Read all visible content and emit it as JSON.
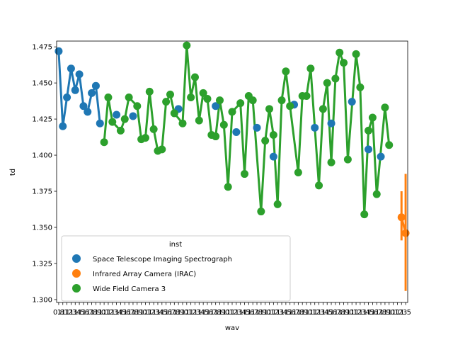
{
  "chart_data": {
    "type": "line",
    "xlabel": "wav",
    "ylabel": "td",
    "ylim": [
      1.298,
      1.479
    ],
    "yticks": [
      "1.300",
      "1.325",
      "1.350",
      "1.375",
      "1.400",
      "1.425",
      "1.450",
      "1.475"
    ],
    "ytick_values": [
      1.3,
      1.325,
      1.35,
      1.375,
      1.4,
      1.425,
      1.45,
      1.475
    ],
    "n_categories": 85,
    "xticks_visible": [
      "0.8",
      "1.5"
    ],
    "legend": {
      "title": "inst",
      "placement": "lower left",
      "entries": [
        "Space Telescope Imaging Spectrograph",
        "Infrared Array Camera (IRAC)",
        "Wide Field Camera 3"
      ]
    },
    "series": [
      {
        "name": "Space Telescope Imaging Spectrograph",
        "color": "#1f77b4",
        "points": [
          [
            0,
            1.472
          ],
          [
            1,
            1.42
          ],
          [
            2,
            1.44
          ],
          [
            3,
            1.46
          ],
          [
            4,
            1.445
          ],
          [
            5,
            1.456
          ],
          [
            6,
            1.434
          ],
          [
            7,
            1.43
          ],
          [
            8,
            1.443
          ],
          [
            9,
            1.448
          ],
          [
            10,
            1.422
          ],
          [
            14,
            1.428
          ],
          [
            18,
            1.427
          ],
          [
            29,
            1.432
          ],
          [
            38,
            1.434
          ],
          [
            43,
            1.416
          ],
          [
            48,
            1.419
          ],
          [
            52,
            1.399
          ],
          [
            57,
            1.435
          ],
          [
            62,
            1.419
          ],
          [
            66,
            1.422
          ],
          [
            71,
            1.437
          ],
          [
            75,
            1.404
          ],
          [
            78,
            1.399
          ]
        ],
        "connected_segments": [
          [
            0,
            10
          ]
        ]
      },
      {
        "name": "Infrared Array Camera (IRAC)",
        "color": "#ff7f0e",
        "points": [
          [
            83,
            1.357
          ],
          [
            84,
            1.346
          ]
        ],
        "error_bars": [
          [
            83,
            1.341,
            1.375
          ],
          [
            84,
            1.306,
            1.387
          ]
        ]
      },
      {
        "name": "Wide Field Camera 3",
        "color": "#2ca02c",
        "points": [
          [
            11,
            1.409
          ],
          [
            12,
            1.44
          ],
          [
            13,
            1.423
          ],
          [
            15,
            1.417
          ],
          [
            16,
            1.425
          ],
          [
            17,
            1.44
          ],
          [
            19,
            1.434
          ],
          [
            20,
            1.411
          ],
          [
            21,
            1.412
          ],
          [
            22,
            1.444
          ],
          [
            23,
            1.418
          ],
          [
            24,
            1.403
          ],
          [
            25,
            1.404
          ],
          [
            26,
            1.437
          ],
          [
            27,
            1.442
          ],
          [
            28,
            1.429
          ],
          [
            30,
            1.422
          ],
          [
            31,
            1.476
          ],
          [
            32,
            1.44
          ],
          [
            33,
            1.454
          ],
          [
            34,
            1.424
          ],
          [
            35,
            1.443
          ],
          [
            36,
            1.439
          ],
          [
            37,
            1.414
          ],
          [
            38,
            1.413
          ],
          [
            39,
            1.438
          ],
          [
            40,
            1.421
          ],
          [
            41,
            1.378
          ],
          [
            42,
            1.43
          ],
          [
            44,
            1.436
          ],
          [
            45,
            1.387
          ],
          [
            46,
            1.441
          ],
          [
            47,
            1.438
          ],
          [
            49,
            1.361
          ],
          [
            50,
            1.41
          ],
          [
            51,
            1.432
          ],
          [
            52,
            1.414
          ],
          [
            53,
            1.366
          ],
          [
            54,
            1.438
          ],
          [
            55,
            1.458
          ],
          [
            56,
            1.434
          ],
          [
            58,
            1.388
          ],
          [
            59,
            1.441
          ],
          [
            60,
            1.441
          ],
          [
            61,
            1.46
          ],
          [
            63,
            1.379
          ],
          [
            64,
            1.432
          ],
          [
            65,
            1.45
          ],
          [
            66,
            1.395
          ],
          [
            67,
            1.453
          ],
          [
            68,
            1.471
          ],
          [
            69,
            1.464
          ],
          [
            70,
            1.397
          ],
          [
            72,
            1.47
          ],
          [
            73,
            1.447
          ],
          [
            74,
            1.359
          ],
          [
            75,
            1.417
          ],
          [
            76,
            1.426
          ],
          [
            77,
            1.373
          ],
          [
            79,
            1.433
          ],
          [
            80,
            1.407
          ]
        ]
      }
    ]
  }
}
